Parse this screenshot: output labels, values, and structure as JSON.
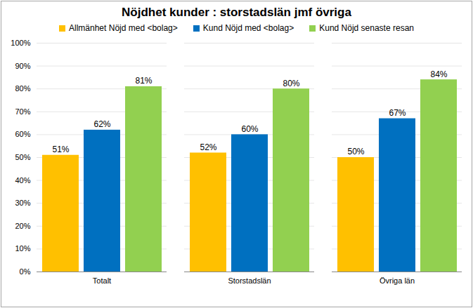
{
  "chart_data": {
    "type": "bar",
    "title": "Nöjdhet kunder : storstadslän jmf övriga",
    "categories": [
      "Totalt",
      "Storstadslän",
      "Övriga län"
    ],
    "series": [
      {
        "name": "Allmänhet Nöjd med <bolag>",
        "color": "#ffc000",
        "values": [
          51,
          52,
          50
        ],
        "value_labels": [
          "51%",
          "52%",
          "50%"
        ]
      },
      {
        "name": "Kund Nöjd med <bolag>",
        "color": "#0070c0",
        "values": [
          62,
          60,
          67
        ],
        "value_labels": [
          "62%",
          "60%",
          "67%"
        ]
      },
      {
        "name": "Kund Nöjd senaste resan",
        "color": "#92d050",
        "values": [
          81,
          80,
          84
        ],
        "value_labels": [
          "81%",
          "80%",
          "84%"
        ]
      }
    ],
    "ylim": [
      0,
      100
    ],
    "yticks": [
      {
        "value": 0,
        "label": "0%"
      },
      {
        "value": 10,
        "label": "10%"
      },
      {
        "value": 20,
        "label": "20%"
      },
      {
        "value": 30,
        "label": "30%"
      },
      {
        "value": 40,
        "label": "40%"
      },
      {
        "value": 50,
        "label": "50%"
      },
      {
        "value": 60,
        "label": "60%"
      },
      {
        "value": 70,
        "label": "70%"
      },
      {
        "value": 80,
        "label": "80%"
      },
      {
        "value": 90,
        "label": "90%"
      },
      {
        "value": 100,
        "label": "100%"
      }
    ],
    "grid": true,
    "legend": "top",
    "data_labels": true
  }
}
